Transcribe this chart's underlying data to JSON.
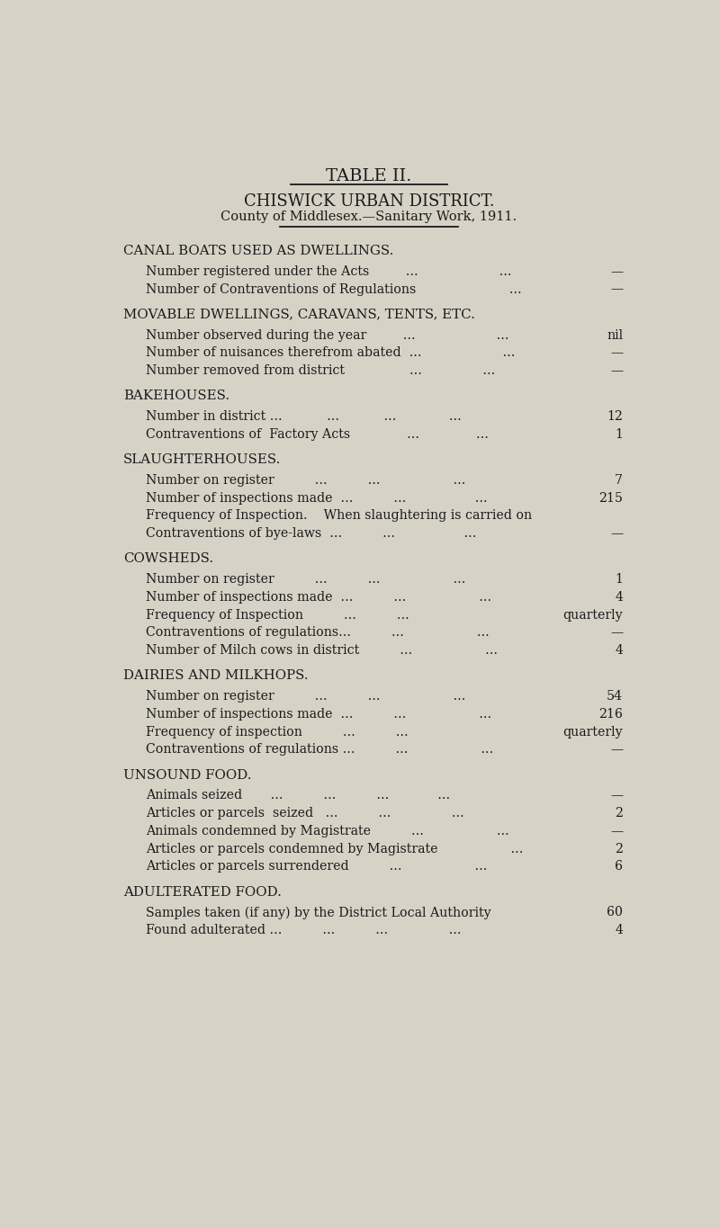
{
  "bg_color": "#d6d2c6",
  "text_color": "#1a1a1a",
  "title1": "TABLE II.",
  "title2": "CHISWICK URBAN DISTRICT.",
  "title3": "County of Middlesex.—Sanitary Work, 1911.",
  "sections": [
    {
      "header": "Canal Boats Used as Dwellings.",
      "items": [
        {
          "label": "Number registered under the Acts         ...                    ...",
          "value": "—"
        },
        {
          "label": "Number of Contraventions of Regulations                       ...",
          "value": "—"
        }
      ]
    },
    {
      "header": "Movable Dwellings, Caravans, Tents, Etc.",
      "items": [
        {
          "label": "Number observed during the year         ...                    ...",
          "value": "nil"
        },
        {
          "label": "Number of nuisances therefrom abated  ...                    ...",
          "value": "—"
        },
        {
          "label": "Number removed from district                ...               ...",
          "value": "—"
        }
      ]
    },
    {
      "header": "Bakehouses.",
      "items": [
        {
          "label": "Number in district ...           ...           ...             ...",
          "value": "12"
        },
        {
          "label": "Contraventions of  Factory Acts              ...              ...",
          "value": "1"
        }
      ]
    },
    {
      "header": "Slaughterhouses.",
      "items": [
        {
          "label": "Number on register          ...          ...                  ...",
          "value": "7"
        },
        {
          "label": "Number of inspections made  ...          ...                 ...",
          "value": "215"
        },
        {
          "label": "Frequency of Inspection.    When slaughtering is carried on",
          "value": ""
        },
        {
          "label": "Contraventions of bye-laws  ...          ...                 ...",
          "value": "—"
        }
      ]
    },
    {
      "header": "Cowsheds.",
      "items": [
        {
          "label": "Number on register          ...          ...                  ...",
          "value": "1"
        },
        {
          "label": "Number of inspections made  ...          ...                  ...",
          "value": "4"
        },
        {
          "label": "Frequency of Inspection          ...          ...",
          "value": "quarterly"
        },
        {
          "label": "Contraventions of regulations...          ...                  ...",
          "value": "—"
        },
        {
          "label": "Number of Milch cows in district          ...                  ...",
          "value": "4"
        }
      ]
    },
    {
      "header": "Dairies and Milkhops.",
      "items": [
        {
          "label": "Number on register          ...          ...                  ...",
          "value": "54"
        },
        {
          "label": "Number of inspections made  ...          ...                  ...",
          "value": "216"
        },
        {
          "label": "Frequency of inspection          ...          ...",
          "value": "quarterly"
        },
        {
          "label": "Contraventions of regulations ...          ...                  ...",
          "value": "—"
        }
      ]
    },
    {
      "header": "Unsound Food.",
      "items": [
        {
          "label": "Animals seized       ...          ...          ...            ...",
          "value": "—"
        },
        {
          "label": "Articles or parcels  seized   ...          ...               ...",
          "value": "2"
        },
        {
          "label": "Animals condemned by Magistrate          ...                  ...",
          "value": "—"
        },
        {
          "label": "Articles or parcels condemned by Magistrate                  ...",
          "value": "2"
        },
        {
          "label": "Articles or parcels surrendered          ...                  ...",
          "value": "6"
        }
      ]
    },
    {
      "header": "Adulterated Food.",
      "items": [
        {
          "label": "Samples taken (if any) by the District Local Authority",
          "value": "60"
        },
        {
          "label": "Found adulterated ...          ...          ...               ...",
          "value": "4"
        }
      ]
    }
  ]
}
